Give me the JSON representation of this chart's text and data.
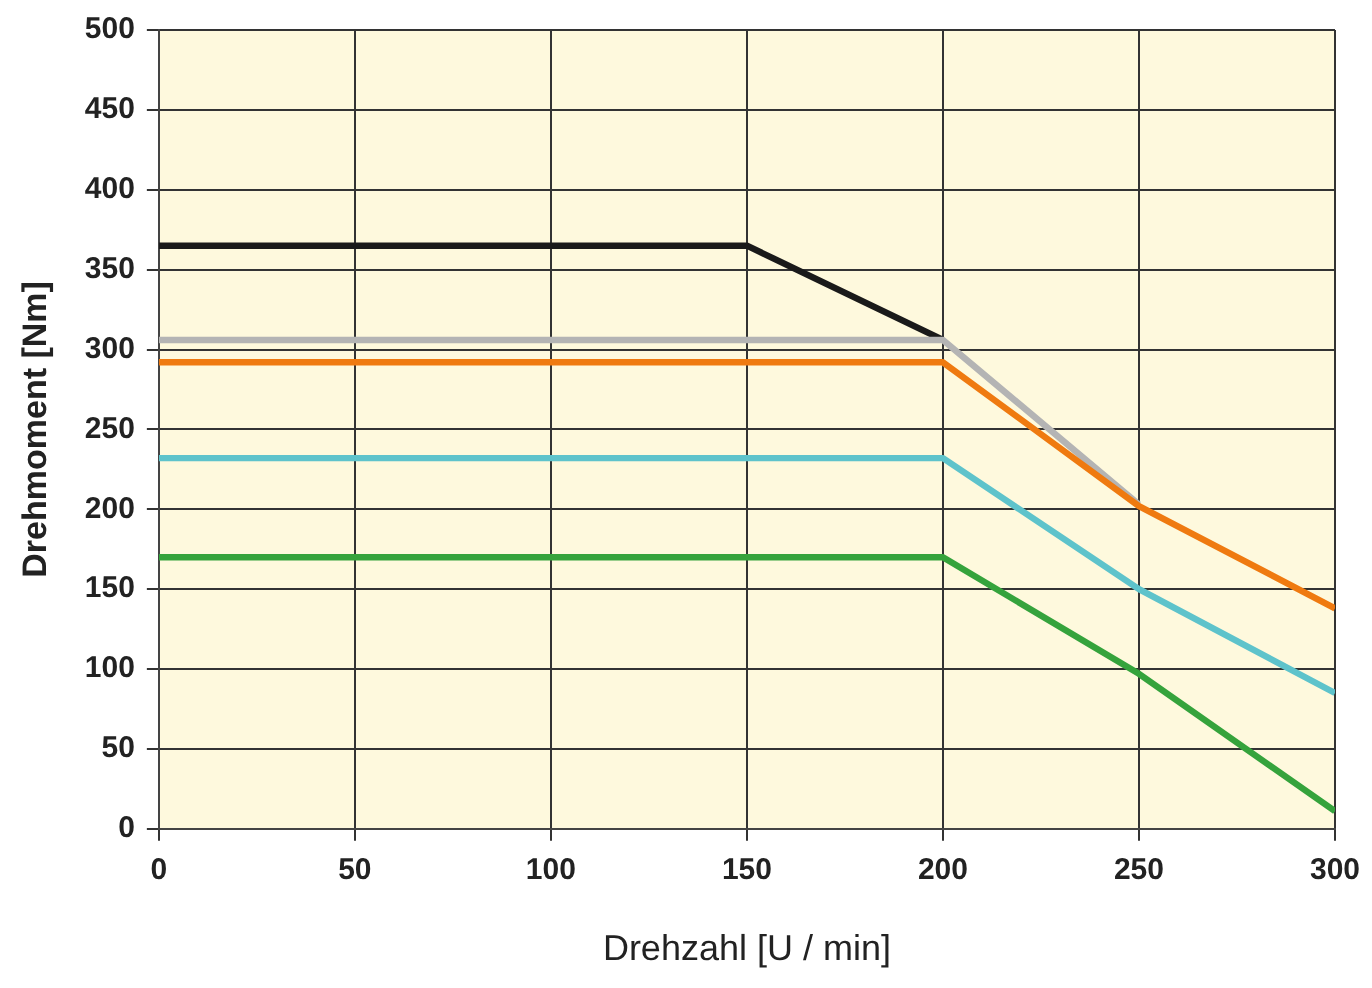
{
  "chart_data": {
    "type": "line",
    "xlabel": "Drehzahl [U / min]",
    "ylabel": "Drehmoment [Nm]",
    "xlim": [
      0,
      300
    ],
    "xticks": [
      0,
      50,
      100,
      150,
      200,
      250,
      300
    ],
    "ylim": [
      0,
      500
    ],
    "yticks": [
      0,
      50,
      100,
      150,
      200,
      250,
      300,
      350,
      400,
      450,
      500
    ],
    "grid": true,
    "legend": false,
    "marker": "none",
    "line_style": "solid",
    "series": [
      {
        "color": "#1a1a1a",
        "x": [
          0,
          150,
          200
        ],
        "values": [
          365,
          365,
          306
        ]
      },
      {
        "color": "#b4b4b4",
        "x": [
          0,
          200,
          250
        ],
        "values": [
          306,
          306,
          203
        ]
      },
      {
        "color": "#ef7a10",
        "x": [
          0,
          200,
          250,
          300
        ],
        "values": [
          292,
          292,
          202,
          138
        ]
      },
      {
        "color": "#5ec3cb",
        "x": [
          0,
          200,
          250,
          300
        ],
        "values": [
          232,
          232,
          150,
          85
        ]
      },
      {
        "color": "#35a33c",
        "x": [
          0,
          200,
          250,
          300
        ],
        "values": [
          170,
          170,
          97,
          11
        ]
      }
    ]
  }
}
